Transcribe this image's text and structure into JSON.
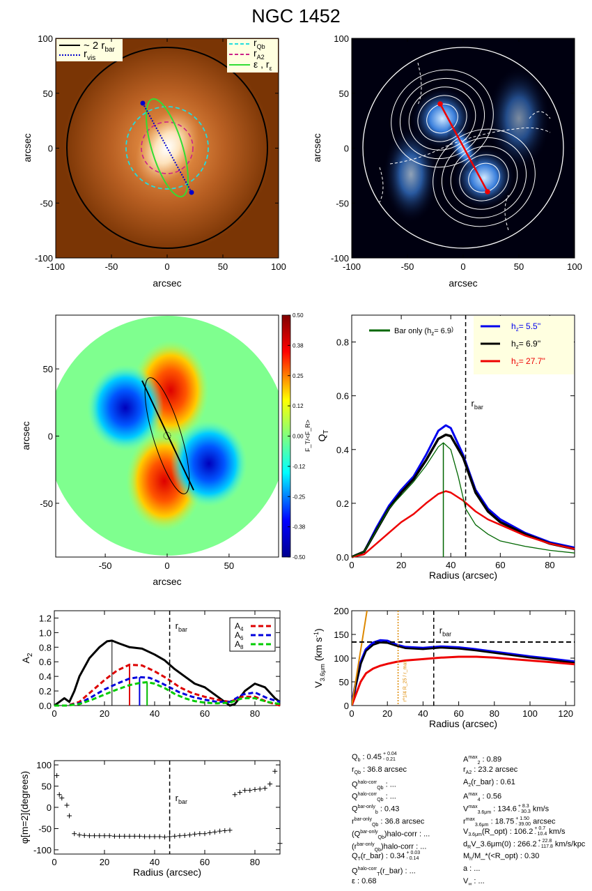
{
  "title": "NGC 1452",
  "axis": {
    "arcsec": "arcsec",
    "radius": "Radius (arcsec)"
  },
  "panel1": {
    "legend_left": [
      {
        "label": "~ 2 r",
        "sub": "bar",
        "color": "#000000",
        "dash": "solid"
      },
      {
        "label": "r",
        "sub": "vis",
        "color": "#0000cc",
        "dash": "dot"
      }
    ],
    "legend_right": [
      {
        "label": "r",
        "sub": "Qb",
        "color": "#22dddd",
        "dash": "dash"
      },
      {
        "label": "r",
        "sub": "A2",
        "color": "#cc2288",
        "dash": "dash"
      },
      {
        "label": "ε , r",
        "sub": "ε",
        "color": "#33dd33",
        "dash": "solid"
      }
    ],
    "ticks": [
      -100,
      -50,
      0,
      50,
      100
    ]
  },
  "panel2": {
    "ticks": [
      -100,
      -50,
      0,
      50,
      100
    ]
  },
  "panel3": {
    "ticks": [
      -50,
      0,
      50
    ],
    "colorbar_ticks": [
      "0.50",
      "0.38",
      "0.25",
      "0.12",
      "0.00",
      "-0.12",
      "-0.25",
      "-0.38",
      "-0.50"
    ],
    "colorbar_label": "F_T/<F_R>"
  },
  "chart_data": [
    {
      "type": "line",
      "panel": "QT",
      "xlabel": "Radius (arcsec)",
      "ylabel": "Q_T",
      "xlim": [
        0,
        90
      ],
      "ylim": [
        0,
        0.9
      ],
      "xticks": [
        0,
        20,
        40,
        60,
        80
      ],
      "yticks": [
        "0.0",
        "0.2",
        "0.4",
        "0.6",
        "0.8"
      ],
      "annotation": "r_bar",
      "rbar": 46,
      "bar_only_peak": 37,
      "legend_baronly": "Bar only (h",
      "legend_baronly_value": "=  6.9",
      "series": [
        {
          "name": "h_z= 5.5''",
          "legend": "h",
          "legend_value": "=   5.5''",
          "color": "#0000ee",
          "x": [
            0,
            5,
            10,
            15,
            20,
            25,
            30,
            35,
            38,
            40,
            45,
            50,
            55,
            60,
            70,
            80,
            90
          ],
          "y": [
            0,
            0.02,
            0.11,
            0.19,
            0.25,
            0.3,
            0.38,
            0.47,
            0.49,
            0.48,
            0.38,
            0.25,
            0.18,
            0.14,
            0.09,
            0.055,
            0.035
          ]
        },
        {
          "name": "h_z= 6.9''",
          "legend": "h",
          "legend_value": "=   6.9''",
          "color": "#000000",
          "x": [
            0,
            5,
            10,
            15,
            20,
            25,
            30,
            35,
            38,
            40,
            45,
            50,
            55,
            60,
            70,
            80,
            90
          ],
          "y": [
            0,
            0.02,
            0.1,
            0.18,
            0.24,
            0.29,
            0.36,
            0.44,
            0.455,
            0.45,
            0.37,
            0.24,
            0.17,
            0.13,
            0.085,
            0.05,
            0.03
          ]
        },
        {
          "name": "h_z= 27.7''",
          "legend": "h",
          "legend_value": "=   27.7''",
          "color": "#ee0000",
          "x": [
            0,
            5,
            10,
            15,
            20,
            25,
            30,
            35,
            38,
            40,
            45,
            50,
            55,
            60,
            70,
            80,
            90
          ],
          "y": [
            0,
            0.01,
            0.05,
            0.09,
            0.13,
            0.16,
            0.2,
            0.235,
            0.245,
            0.24,
            0.21,
            0.17,
            0.14,
            0.12,
            0.08,
            0.05,
            0.03
          ]
        },
        {
          "name": "Bar only (h_z= 6.9'')",
          "color": "#006600",
          "x": [
            0,
            5,
            10,
            15,
            20,
            25,
            30,
            35,
            37,
            40,
            43,
            46,
            50,
            55,
            60,
            70,
            80,
            90
          ],
          "y": [
            0,
            0.02,
            0.1,
            0.18,
            0.23,
            0.28,
            0.34,
            0.41,
            0.425,
            0.4,
            0.3,
            0.18,
            0.12,
            0.085,
            0.06,
            0.04,
            0.025,
            0.015
          ]
        }
      ]
    },
    {
      "type": "line",
      "panel": "A2",
      "xlabel": "",
      "ylabel": "A_2",
      "xlim": [
        0,
        90
      ],
      "ylim": [
        0,
        1.3
      ],
      "xticks": [
        0,
        20,
        40,
        60,
        80
      ],
      "yticks": [
        "0.0",
        "0.2",
        "0.4",
        "0.6",
        "0.8",
        "1.0",
        "1.2"
      ],
      "annotation": "r_bar",
      "rbar": 46,
      "markers": [
        {
          "x": 23,
          "color": "#000000"
        },
        {
          "x": 30,
          "color": "#dd0000"
        },
        {
          "x": 34,
          "color": "#0000dd"
        },
        {
          "x": 37,
          "color": "#00bb00"
        }
      ],
      "series": [
        {
          "name": "A_2",
          "color": "#000000",
          "dash": "solid",
          "x": [
            0,
            2,
            4,
            6,
            8,
            10,
            14,
            18,
            21,
            23,
            26,
            30,
            35,
            40,
            44,
            48,
            52,
            56,
            60,
            64,
            68,
            70,
            72,
            76,
            80,
            84,
            88,
            90
          ],
          "y": [
            0,
            0.05,
            0.1,
            0.05,
            0.2,
            0.4,
            0.65,
            0.8,
            0.88,
            0.89,
            0.85,
            0.8,
            0.78,
            0.7,
            0.62,
            0.5,
            0.4,
            0.3,
            0.25,
            0.15,
            0.05,
            0.0,
            0.02,
            0.2,
            0.3,
            0.25,
            0.1,
            0.05
          ]
        },
        {
          "name": "A_4",
          "color": "#dd0000",
          "dash": "dash",
          "x": [
            0,
            5,
            10,
            15,
            20,
            25,
            30,
            35,
            40,
            45,
            50,
            55,
            60,
            65,
            70,
            75,
            80,
            85,
            90
          ],
          "y": [
            0,
            0.0,
            0.05,
            0.2,
            0.35,
            0.48,
            0.56,
            0.55,
            0.47,
            0.37,
            0.25,
            0.17,
            0.12,
            0.08,
            0.05,
            0.12,
            0.12,
            0.05,
            0.0
          ]
        },
        {
          "name": "A_6",
          "color": "#0000dd",
          "dash": "dash",
          "x": [
            0,
            5,
            10,
            15,
            20,
            25,
            30,
            34,
            38,
            42,
            46,
            50,
            55,
            60,
            65,
            70,
            75,
            80,
            85,
            90
          ],
          "y": [
            0,
            0.0,
            0.03,
            0.12,
            0.22,
            0.3,
            0.37,
            0.39,
            0.38,
            0.32,
            0.25,
            0.18,
            0.12,
            0.08,
            0.05,
            0.05,
            0.15,
            0.18,
            0.1,
            0.05
          ]
        },
        {
          "name": "A_8",
          "color": "#00cc00",
          "dash": "dash",
          "x": [
            0,
            5,
            10,
            15,
            20,
            25,
            30,
            34,
            37,
            40,
            44,
            48,
            52,
            56,
            60,
            65,
            70,
            75,
            80,
            85,
            90
          ],
          "y": [
            0,
            0.0,
            0.02,
            0.08,
            0.15,
            0.22,
            0.28,
            0.31,
            0.32,
            0.3,
            0.24,
            0.16,
            0.1,
            0.06,
            0.04,
            0.03,
            0.04,
            0.1,
            0.1,
            0.05,
            0.02
          ]
        }
      ],
      "legend": [
        "A",
        "A",
        "A"
      ],
      "legend_subs": [
        "4",
        "6",
        "8"
      ]
    },
    {
      "type": "line",
      "panel": "Vc",
      "xlabel": "Radius (arcsec)",
      "ylabel": "V_3.6μm (km s^-1)",
      "xlim": [
        0,
        125
      ],
      "ylim": [
        0,
        200
      ],
      "xticks": [
        0,
        20,
        40,
        60,
        80,
        100,
        120
      ],
      "yticks": [
        "0",
        "50",
        "100",
        "150",
        "200"
      ],
      "annotation": "r_bar",
      "annotation2": "r^1/4 R_25 / r_max",
      "rbar": 46,
      "rmax_line": 26,
      "hline": 134,
      "series": [
        {
          "name": "blue",
          "color": "#0000ee",
          "x": [
            0,
            2,
            5,
            8,
            12,
            16,
            20,
            25,
            30,
            40,
            50,
            60,
            70,
            80,
            90,
            100,
            110,
            125
          ],
          "y": [
            0,
            40,
            90,
            118,
            132,
            137,
            136,
            128,
            123,
            121,
            124,
            122,
            118,
            113,
            108,
            103,
            99,
            92
          ]
        },
        {
          "name": "black",
          "color": "#000000",
          "x": [
            0,
            2,
            5,
            8,
            12,
            16,
            20,
            25,
            30,
            40,
            50,
            60,
            70,
            80,
            90,
            100,
            110,
            125
          ],
          "y": [
            0,
            38,
            87,
            115,
            128,
            133,
            132,
            126,
            121,
            119,
            122,
            120,
            116,
            111,
            106,
            101,
            97,
            90
          ]
        },
        {
          "name": "red",
          "color": "#ee0000",
          "x": [
            0,
            2,
            5,
            8,
            12,
            16,
            20,
            25,
            30,
            40,
            50,
            60,
            70,
            80,
            90,
            100,
            110,
            125
          ],
          "y": [
            0,
            20,
            50,
            68,
            78,
            84,
            88,
            92,
            95,
            98,
            101,
            103,
            103,
            101,
            98,
            95,
            92,
            87
          ]
        },
        {
          "name": "orange",
          "color": "#dd8800",
          "x": [
            0,
            3,
            6,
            9
          ],
          "y": [
            0,
            70,
            140,
            210
          ]
        }
      ]
    },
    {
      "type": "scatter",
      "panel": "phase",
      "xlabel": "Radius (arcsec)",
      "ylabel": "φ[m=2](degrees)",
      "xlim": [
        0,
        90
      ],
      "ylim": [
        -110,
        110
      ],
      "xticks": [
        0,
        20,
        40,
        60,
        80
      ],
      "yticks": [
        "-100",
        "-50",
        "0",
        "50",
        "100"
      ],
      "annotation": "r_bar",
      "rbar": 46,
      "x": [
        1,
        2,
        3,
        5,
        6,
        8,
        10,
        12,
        14,
        16,
        18,
        20,
        22,
        24,
        26,
        28,
        30,
        32,
        34,
        36,
        38,
        40,
        42,
        44,
        46,
        48,
        50,
        52,
        54,
        56,
        58,
        60,
        62,
        64,
        66,
        68,
        70,
        72,
        74,
        76,
        78,
        80,
        82,
        84,
        86,
        88,
        90
      ],
      "y": [
        75,
        30,
        22,
        5,
        -20,
        -62,
        -65,
        -66,
        -67,
        -67,
        -67,
        -67,
        -67,
        -68,
        -68,
        -68,
        -68,
        -68,
        -68,
        -69,
        -69,
        -69,
        -69,
        -70,
        -69,
        -68,
        -67,
        -66,
        -65,
        -63,
        -62,
        -62,
        -60,
        -58,
        -56,
        -55,
        -54,
        30,
        35,
        40,
        40,
        42,
        43,
        45,
        55,
        85,
        -85
      ]
    }
  ],
  "stats": [
    {
      "label": "Q",
      "sub": "b",
      "sup": "",
      "value": " :  0.45",
      "err": [
        "0.04",
        "0.21"
      ]
    },
    {
      "label": "r",
      "sub": "Qb",
      "sup": "",
      "value": " :  36.8  arcsec",
      "err": null
    },
    {
      "label": "Q",
      "sub": "Qb",
      "sup": "halo-corr",
      "value": " : ...",
      "err": null
    },
    {
      "label": "Q",
      "sub": "Qb",
      "sup": "halo-corr",
      "value": " : ...",
      "err": null
    },
    {
      "label": "Q",
      "sub": "b",
      "sup": "bar-only",
      "value": " :  0.43",
      "err": null
    },
    {
      "label": "r",
      "sub": "Qb",
      "sup": "bar-only",
      "value": " :  36.8 arcsec",
      "err": null
    },
    {
      "label": "(Q",
      "sub": "Qb",
      "sup": "bar-only",
      "value": ")halo-corr : ...",
      "err": null
    },
    {
      "label": "(r",
      "sub": "Qb",
      "sup": "bar-only",
      "value": ")halo-corr : ...",
      "err": null
    },
    {
      "label": "Q",
      "sub": "T",
      "sup": "",
      "value": "(r_bar) :  0.34",
      "err": [
        "0.03",
        "0.14"
      ]
    },
    {
      "label": "Q",
      "sub": "T",
      "sup": "halo-corr",
      "value": "(r_bar) : ...",
      "err": null
    },
    {
      "label": "ε",
      "sub": "",
      "sup": "",
      "value": " :  0.68",
      "err": null
    }
  ],
  "stats_right": [
    {
      "label": "A",
      "sub": "2",
      "sup": "max",
      "value": " :  0.89",
      "err": null
    },
    {
      "label": "r",
      "sub": "A2",
      "sup": "",
      "value": " :  23.2 arcsec",
      "err": null
    },
    {
      "label": "A",
      "sub": "2",
      "sup": "",
      "value": "(r_bar) :  0.61",
      "err": null
    },
    {
      "label": "A",
      "sub": "4",
      "sup": "max",
      "value": " :  0.56",
      "err": null
    },
    {
      "label": "V",
      "sub": "3.6μm",
      "sup": "max",
      "value": " :  134.6",
      "err": [
        "8.3",
        "30.3"
      ],
      "tail": " km/s"
    },
    {
      "label": "r",
      "sub": "3.6μm",
      "sup": "max",
      "value": " :  18.75",
      "err": [
        "1.50",
        "39.00"
      ],
      "tail": " arcsec"
    },
    {
      "label": "V",
      "sub": "3.6μm",
      "sup": "",
      "value": "(R_opt) :  106.2",
      "err": [
        "0.7",
        "10.4"
      ],
      "tail": " km/s"
    },
    {
      "label": "d",
      "sub": "R",
      "sup": "",
      "value": "V_3.6μm(0) :  266.2",
      "err": [
        "22.8",
        "117.8"
      ],
      "tail": " km/s/kpc"
    },
    {
      "label": "M",
      "sub": "h",
      "sup": "",
      "value": "/M_*(<R_opt) :  0.30",
      "err": null
    },
    {
      "label": "a",
      "sub": "",
      "sup": "",
      "value": " : ...",
      "err": null
    },
    {
      "label": "V",
      "sub": "∞",
      "sup": "",
      "value": " : ...",
      "err": null
    }
  ]
}
